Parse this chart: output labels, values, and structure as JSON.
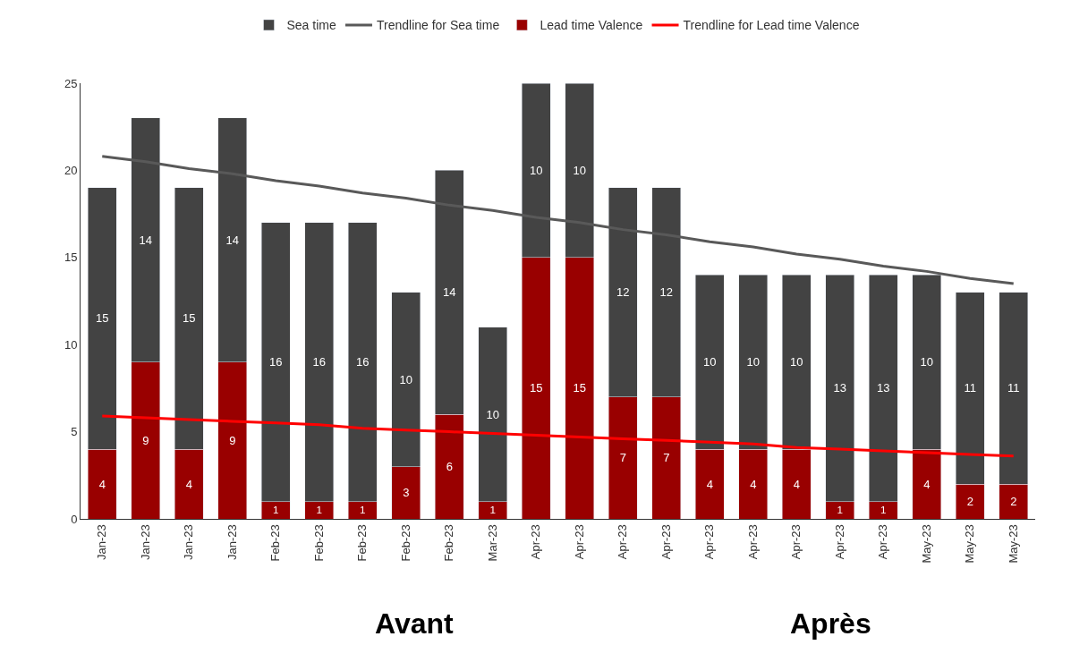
{
  "chart_data": {
    "type": "bar",
    "stacked": true,
    "legend": "top",
    "categories": [
      "Jan-23",
      "Jan-23",
      "Jan-23",
      "Jan-23",
      "Feb-23",
      "Feb-23",
      "Feb-23",
      "Feb-23",
      "Feb-23",
      "Mar-23",
      "Apr-23",
      "Apr-23",
      "Apr-23",
      "Apr-23",
      "Apr-23",
      "Apr-23",
      "Apr-23",
      "Apr-23",
      "Apr-23",
      "May-23",
      "May-23",
      "May-23"
    ],
    "ylim": [
      0,
      25
    ],
    "yticks": [
      0,
      5,
      10,
      15,
      20,
      25
    ],
    "series": [
      {
        "name": "Lead time Valence",
        "color": "#990000",
        "values": [
          4,
          9,
          4,
          9,
          1,
          1,
          1,
          3,
          6,
          1,
          15,
          15,
          7,
          7,
          4,
          4,
          4,
          1,
          1,
          4,
          2,
          2
        ],
        "value_labels": [
          "4",
          "9",
          "4",
          "9",
          "1",
          "1",
          "1",
          "3",
          "6",
          "1",
          "15",
          "15",
          "7",
          "7",
          "4",
          "4",
          "4",
          "1",
          "1",
          "4",
          "2",
          "2"
        ]
      },
      {
        "name": "Sea time",
        "color": "#434343",
        "values": [
          15,
          14,
          15,
          14,
          16,
          16,
          16,
          10,
          14,
          10,
          10,
          10,
          12,
          12,
          10,
          10,
          10,
          13,
          13,
          10,
          11,
          11
        ],
        "value_labels": [
          "15",
          "14",
          "15",
          "14",
          "16",
          "16",
          "16",
          "10",
          "14",
          "10",
          "10",
          "10",
          "12",
          "12",
          "10",
          "10",
          "10",
          "13",
          "13",
          "10",
          "11",
          "11"
        ]
      },
      {
        "name": "Trendline for Sea time",
        "type": "line",
        "color": "#595959",
        "values": [
          20.8,
          20.5,
          20.1,
          19.8,
          19.4,
          19.1,
          18.7,
          18.4,
          18.0,
          17.7,
          17.3,
          17.0,
          16.6,
          16.3,
          15.9,
          15.6,
          15.2,
          14.9,
          14.5,
          14.2,
          13.8,
          13.5
        ]
      },
      {
        "name": "Trendline for Lead time Valence",
        "type": "line",
        "color": "#ff0000",
        "values": [
          5.9,
          5.8,
          5.7,
          5.6,
          5.5,
          5.4,
          5.2,
          5.1,
          5.0,
          4.9,
          4.8,
          4.7,
          4.6,
          4.5,
          4.4,
          4.3,
          4.1,
          4.0,
          3.9,
          3.8,
          3.7,
          3.6
        ]
      }
    ],
    "annotations": [
      "Avant",
      "Après"
    ]
  }
}
